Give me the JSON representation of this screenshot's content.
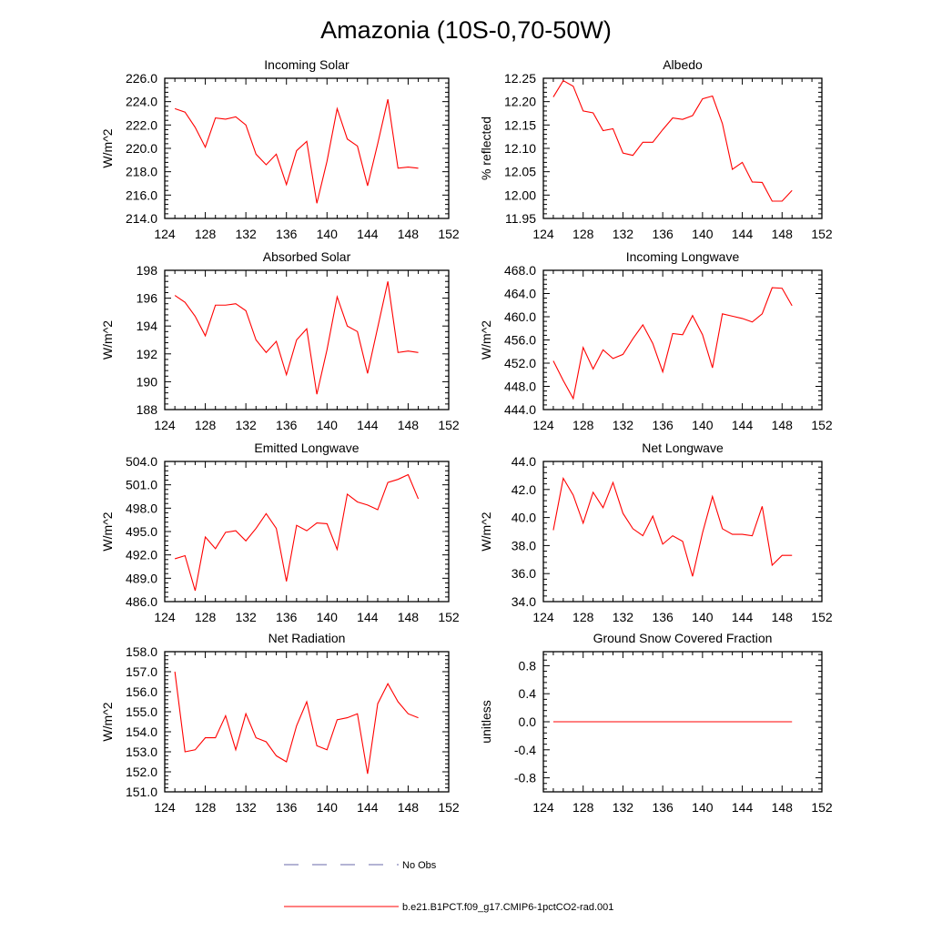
{
  "title": "Amazonia (10S-0,70-50W)",
  "colors": {
    "model": "#ff0000",
    "obs": "#6a6aaa",
    "axis": "#000000"
  },
  "legend": [
    {
      "label": "No Obs",
      "style": "dashed",
      "color": "#6a6aaa"
    },
    {
      "label": "b.e21.B1PCT.f09_g17.CMIP6-1pctCO2-rad.001",
      "style": "solid",
      "color": "#ff0000"
    }
  ],
  "chart_data": [
    {
      "type": "line",
      "title": "Incoming Solar",
      "ylabel": "W/m^2",
      "xlim": [
        124,
        152
      ],
      "ylim": [
        214,
        226
      ],
      "xticks": [
        "124",
        "128",
        "132",
        "136",
        "140",
        "144",
        "148",
        "152"
      ],
      "yticks": [
        "214.0",
        "216.0",
        "218.0",
        "220.0",
        "222.0",
        "224.0",
        "226.0"
      ],
      "x": [
        125,
        126,
        127,
        128,
        129,
        130,
        131,
        132,
        133,
        134,
        135,
        136,
        137,
        138,
        139,
        140,
        141,
        142,
        143,
        144,
        145,
        146,
        147,
        148,
        149
      ],
      "series": [
        {
          "values": [
            223.4,
            223.1,
            221.8,
            220.1,
            222.6,
            222.5,
            222.7,
            222.0,
            219.5,
            218.6,
            219.5,
            216.9,
            219.8,
            220.6,
            215.3,
            218.9,
            223.4,
            220.8,
            220.2,
            216.8,
            220.4,
            224.2,
            218.3,
            218.4,
            218.3
          ]
        }
      ]
    },
    {
      "type": "line",
      "title": "Albedo",
      "ylabel": "% reflected",
      "xlim": [
        124,
        152
      ],
      "ylim": [
        11.95,
        12.25
      ],
      "xticks": [
        "124",
        "128",
        "132",
        "136",
        "140",
        "144",
        "148",
        "152"
      ],
      "yticks": [
        "11.95",
        "12.00",
        "12.05",
        "12.10",
        "12.15",
        "12.20",
        "12.25"
      ],
      "x": [
        125,
        126,
        127,
        128,
        129,
        130,
        131,
        132,
        133,
        134,
        135,
        136,
        137,
        138,
        139,
        140,
        141,
        142,
        143,
        144,
        145,
        146,
        147,
        148,
        149
      ],
      "series": [
        {
          "values": [
            12.21,
            12.245,
            12.233,
            12.18,
            12.176,
            12.138,
            12.142,
            12.09,
            12.085,
            12.113,
            12.113,
            12.14,
            12.165,
            12.162,
            12.17,
            12.206,
            12.212,
            12.153,
            12.055,
            12.07,
            12.028,
            12.027,
            11.987,
            11.987,
            12.01
          ]
        }
      ]
    },
    {
      "type": "line",
      "title": "Absorbed Solar",
      "ylabel": "W/m^2",
      "xlim": [
        124,
        152
      ],
      "ylim": [
        188,
        198
      ],
      "xticks": [
        "124",
        "128",
        "132",
        "136",
        "140",
        "144",
        "148",
        "152"
      ],
      "yticks": [
        "188",
        "190",
        "192",
        "194",
        "196",
        "198"
      ],
      "x": [
        125,
        126,
        127,
        128,
        129,
        130,
        131,
        132,
        133,
        134,
        135,
        136,
        137,
        138,
        139,
        140,
        141,
        142,
        143,
        144,
        145,
        146,
        147,
        148,
        149
      ],
      "series": [
        {
          "values": [
            196.2,
            195.7,
            194.7,
            193.3,
            195.5,
            195.5,
            195.6,
            195.1,
            193.0,
            192.1,
            192.9,
            190.5,
            193.0,
            193.8,
            189.1,
            192.3,
            196.1,
            194.0,
            193.6,
            190.6,
            193.9,
            197.2,
            192.1,
            192.2,
            192.1
          ]
        }
      ]
    },
    {
      "type": "line",
      "title": "Incoming Longwave",
      "ylabel": "W/m^2",
      "xlim": [
        124,
        152
      ],
      "ylim": [
        444,
        468
      ],
      "xticks": [
        "124",
        "128",
        "132",
        "136",
        "140",
        "144",
        "148",
        "152"
      ],
      "yticks": [
        "444.0",
        "448.0",
        "452.0",
        "456.0",
        "460.0",
        "464.0",
        "468.0"
      ],
      "x": [
        125,
        126,
        127,
        128,
        129,
        130,
        131,
        132,
        133,
        134,
        135,
        136,
        137,
        138,
        139,
        140,
        141,
        142,
        143,
        144,
        145,
        146,
        147,
        148,
        149
      ],
      "series": [
        {
          "values": [
            452.4,
            449.0,
            445.9,
            454.7,
            451.0,
            454.3,
            452.8,
            453.5,
            456.2,
            458.6,
            455.4,
            450.5,
            457.1,
            456.9,
            460.2,
            456.9,
            451.2,
            460.5,
            460.1,
            459.7,
            459.1,
            460.5,
            465.0,
            464.9,
            461.9
          ]
        }
      ]
    },
    {
      "type": "line",
      "title": "Emitted Longwave",
      "ylabel": "W/m^2",
      "xlim": [
        124,
        152
      ],
      "ylim": [
        486,
        504
      ],
      "xticks": [
        "124",
        "128",
        "132",
        "136",
        "140",
        "144",
        "148",
        "152"
      ],
      "yticks": [
        "486.0",
        "489.0",
        "492.0",
        "495.0",
        "498.0",
        "501.0",
        "504.0"
      ],
      "x": [
        125,
        126,
        127,
        128,
        129,
        130,
        131,
        132,
        133,
        134,
        135,
        136,
        137,
        138,
        139,
        140,
        141,
        142,
        143,
        144,
        145,
        146,
        147,
        148,
        149
      ],
      "series": [
        {
          "values": [
            491.5,
            491.9,
            487.4,
            494.3,
            492.8,
            494.9,
            495.1,
            493.8,
            495.4,
            497.3,
            495.4,
            488.6,
            495.8,
            495.1,
            496.1,
            496.0,
            492.7,
            499.8,
            498.8,
            498.4,
            497.8,
            501.3,
            501.7,
            502.3,
            499.2
          ]
        }
      ]
    },
    {
      "type": "line",
      "title": "Net Longwave",
      "ylabel": "W/m^2",
      "xlim": [
        124,
        152
      ],
      "ylim": [
        34,
        44
      ],
      "xticks": [
        "124",
        "128",
        "132",
        "136",
        "140",
        "144",
        "148",
        "152"
      ],
      "yticks": [
        "34.0",
        "36.0",
        "38.0",
        "40.0",
        "42.0",
        "44.0"
      ],
      "x": [
        125,
        126,
        127,
        128,
        129,
        130,
        131,
        132,
        133,
        134,
        135,
        136,
        137,
        138,
        139,
        140,
        141,
        142,
        143,
        144,
        145,
        146,
        147,
        148,
        149
      ],
      "series": [
        {
          "values": [
            39.1,
            42.8,
            41.6,
            39.6,
            41.8,
            40.7,
            42.5,
            40.3,
            39.2,
            38.7,
            40.1,
            38.1,
            38.7,
            38.3,
            35.8,
            38.9,
            41.5,
            39.2,
            38.8,
            38.8,
            38.7,
            40.8,
            36.6,
            37.3,
            37.3
          ]
        }
      ]
    },
    {
      "type": "line",
      "title": "Net Radiation",
      "ylabel": "W/m^2",
      "xlim": [
        124,
        152
      ],
      "ylim": [
        151,
        158
      ],
      "xticks": [
        "124",
        "128",
        "132",
        "136",
        "140",
        "144",
        "148",
        "152"
      ],
      "yticks": [
        "151.0",
        "152.0",
        "153.0",
        "154.0",
        "155.0",
        "156.0",
        "157.0",
        "158.0"
      ],
      "x": [
        125,
        126,
        127,
        128,
        129,
        130,
        131,
        132,
        133,
        134,
        135,
        136,
        137,
        138,
        139,
        140,
        141,
        142,
        143,
        144,
        145,
        146,
        147,
        148,
        149
      ],
      "series": [
        {
          "values": [
            157.0,
            153.0,
            153.1,
            153.7,
            153.7,
            154.8,
            153.1,
            154.9,
            153.7,
            153.5,
            152.8,
            152.5,
            154.3,
            155.5,
            153.3,
            153.1,
            154.6,
            154.7,
            154.9,
            151.9,
            155.4,
            156.4,
            155.5,
            154.9,
            154.7
          ]
        }
      ]
    },
    {
      "type": "line",
      "title": "Ground Snow Covered Fraction",
      "ylabel": "unitless",
      "xlim": [
        124,
        152
      ],
      "ylim": [
        -1.0,
        1.0
      ],
      "xticks": [
        "124",
        "128",
        "132",
        "136",
        "140",
        "144",
        "148",
        "152"
      ],
      "yticks": [
        "-0.8",
        "-0.4",
        "0.0",
        "0.4",
        "0.8"
      ],
      "x": [
        125,
        149
      ],
      "series": [
        {
          "values": [
            0.0,
            0.0
          ]
        }
      ]
    }
  ]
}
